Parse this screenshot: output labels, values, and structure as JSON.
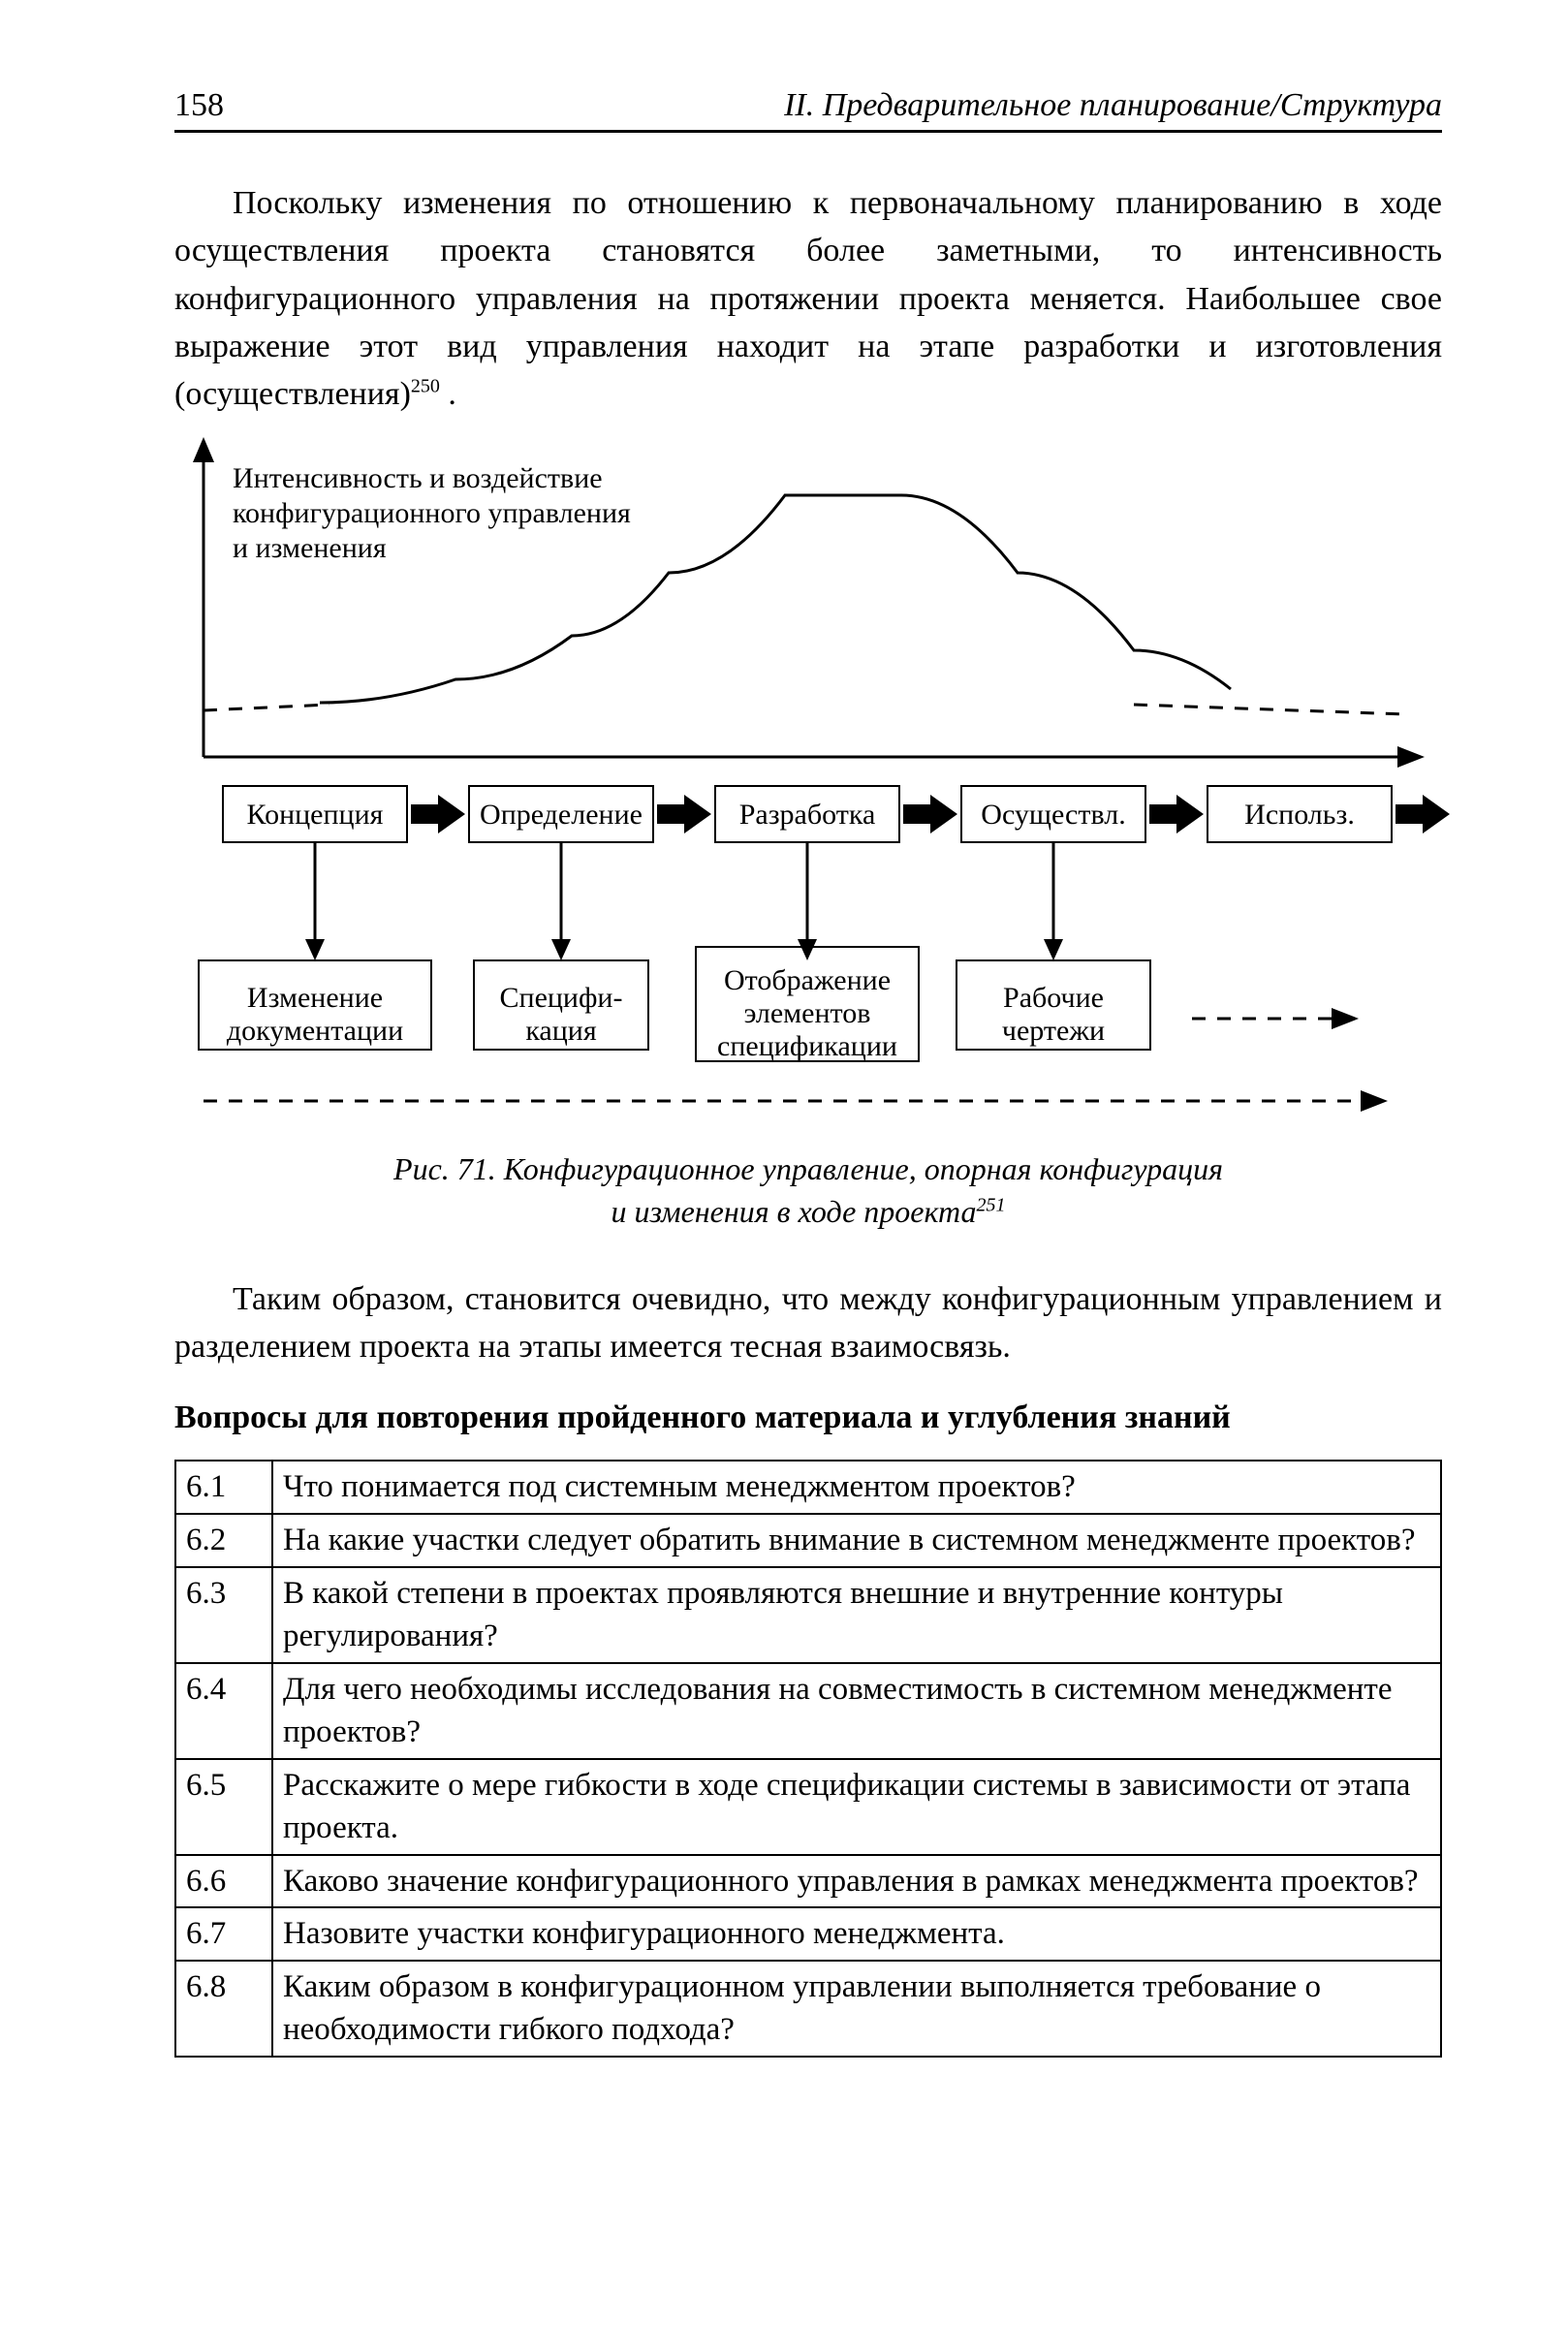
{
  "page": {
    "number": "158",
    "running_head": "II. Предварительное планирование/Структура"
  },
  "paragraphs": {
    "p1": "Поскольку изменения по отношению к первоначальному планированию в ходе осуществления проекта становятся более заметными, то интенсивность конфигурационного управления на протяжении проекта меняется. Наибольшее свое выражение этот вид управления находит на этапе разработки и изготовления (осуществления)",
    "p1_footref": "250",
    "p1_period": " .",
    "p2": "Таким образом, становится очевидно, что между конфигурационным управлением и разделением проекта на этапы имеется тесная взаимосвязь."
  },
  "figure": {
    "axis_label_line1": "Интенсивность и воздействие",
    "axis_label_line2": "конфигурационного управления",
    "axis_label_line3": "и изменения",
    "phases": [
      "Концепция",
      "Определение",
      "Разработка",
      "Осуществл.",
      "Использ."
    ],
    "lower_boxes": {
      "b1_l1": "Изменение",
      "b1_l2": "документации",
      "b2_l1": "Специфи-",
      "b2_l2": "кация",
      "b3_l1": "Отображение",
      "b3_l2": "элементов",
      "b3_l3": "спецификации",
      "b4_l1": "Рабочие",
      "b4_l2": "чертежи"
    },
    "caption_l1": "Рис. 71. Конфигурационное управление, опорная конфигурация",
    "caption_l2": "и изменения в ходе проекта",
    "caption_footref": "251",
    "colors": {
      "line": "#000000",
      "bg": "#ffffff"
    },
    "curve": {
      "x": [
        40,
        160,
        300,
        420,
        520,
        640,
        760,
        880,
        1000,
        1100,
        1200,
        1280
      ],
      "y": [
        280,
        274,
        250,
        205,
        140,
        60,
        60,
        140,
        220,
        260,
        278,
        282
      ]
    },
    "style": {
      "stroke_width": 3,
      "axis_width": 3,
      "dash": "10,10"
    }
  },
  "section": {
    "heading": "Вопросы для повторения пройденного материала и углубления знаний"
  },
  "questions": [
    {
      "n": "6.1",
      "q": "Что понимается под системным менеджментом проектов?"
    },
    {
      "n": "6.2",
      "q": "На какие участки следует обратить внимание в системном менеджменте проектов?"
    },
    {
      "n": "6.3",
      "q": "В какой степени в проектах проявляются внешние и внутренние контуры регулирования?"
    },
    {
      "n": "6.4",
      "q": "Для чего необходимы исследования на совместимость в системном менеджменте проектов?"
    },
    {
      "n": "6.5",
      "q": "Расскажите о мере гибкости в ходе спецификации системы в зависимости от этапа проекта."
    },
    {
      "n": "6.6",
      "q": "Каково значение конфигурационного управления в рамках менеджмента проектов?"
    },
    {
      "n": "6.7",
      "q": "Назовите участки конфигурационного менеджмента."
    },
    {
      "n": "6.8",
      "q": "Каким образом в конфигурационном управлении выполняется требование о необходимости гибкого подхода?"
    }
  ]
}
